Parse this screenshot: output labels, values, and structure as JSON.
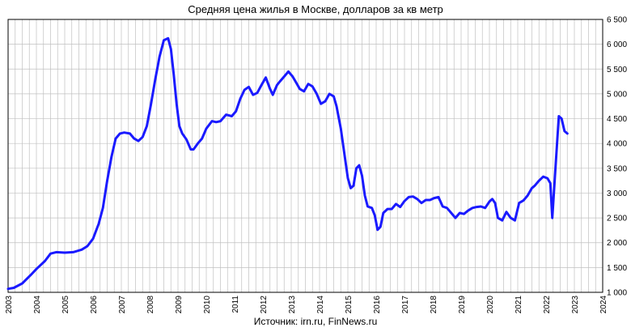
{
  "chart_data": {
    "type": "line",
    "title": "Средняя цена жилья в Москве, долларов за кв метр",
    "source": "Источник: irn.ru, FinNews.ru",
    "xlabel": "",
    "ylabel": "",
    "xlim": [
      2003,
      2024
    ],
    "ylim": [
      1000,
      6500
    ],
    "x_ticks": [
      "2003",
      "2004",
      "2005",
      "2006",
      "2007",
      "2008",
      "2009",
      "2010",
      "2011",
      "2012",
      "2013",
      "2014",
      "2015",
      "2016",
      "2017",
      "2018",
      "2019",
      "2020",
      "2021",
      "2022",
      "2023",
      "2024"
    ],
    "y_ticks": [
      "1 000",
      "1 500",
      "2 000",
      "2 500",
      "3 000",
      "3 500",
      "4 000",
      "4 500",
      "5 000",
      "5 500",
      "6 000",
      "6 500"
    ],
    "grid": true,
    "colors": {
      "line": "#1a1aff",
      "grid": "#c0c0c0",
      "axis": "#000000"
    },
    "series": [
      {
        "x": [
          2003.0,
          2003.2,
          2003.5,
          2003.8,
          2004.0,
          2004.3,
          2004.5,
          2004.7,
          2005.0,
          2005.3,
          2005.6,
          2005.8,
          2006.0,
          2006.2,
          2006.35,
          2006.5,
          2006.65,
          2006.8,
          2006.95,
          2007.1,
          2007.3,
          2007.45,
          2007.6,
          2007.75,
          2007.9,
          2008.05,
          2008.2,
          2008.35,
          2008.5,
          2008.65,
          2008.75,
          2008.85,
          2008.95,
          2009.05,
          2009.15,
          2009.3,
          2009.45,
          2009.55,
          2009.7,
          2009.85,
          2010.0,
          2010.2,
          2010.35,
          2010.5,
          2010.7,
          2010.9,
          2011.05,
          2011.2,
          2011.35,
          2011.5,
          2011.65,
          2011.8,
          2011.95,
          2012.1,
          2012.25,
          2012.35,
          2012.5,
          2012.6,
          2012.75,
          2012.9,
          2013.05,
          2013.15,
          2013.3,
          2013.45,
          2013.6,
          2013.75,
          2013.9,
          2014.05,
          2014.2,
          2014.35,
          2014.5,
          2014.6,
          2014.75,
          2014.9,
          2015.0,
          2015.1,
          2015.2,
          2015.3,
          2015.4,
          2015.5,
          2015.6,
          2015.7,
          2015.85,
          2015.95,
          2016.05,
          2016.15,
          2016.25,
          2016.4,
          2016.55,
          2016.7,
          2016.85,
          2017.0,
          2017.15,
          2017.3,
          2017.45,
          2017.6,
          2017.75,
          2017.9,
          2018.05,
          2018.2,
          2018.35,
          2018.5,
          2018.65,
          2018.8,
          2018.95,
          2019.1,
          2019.25,
          2019.4,
          2019.55,
          2019.7,
          2019.85,
          2020.0,
          2020.1,
          2020.2,
          2020.3,
          2020.45,
          2020.6,
          2020.75,
          2020.9,
          2021.05,
          2021.2,
          2021.35,
          2021.5,
          2021.6,
          2021.75,
          2021.9,
          2022.05,
          2022.15,
          2022.22,
          2022.35,
          2022.45,
          2022.55,
          2022.65,
          2022.75
        ],
        "y": [
          1070,
          1090,
          1180,
          1350,
          1470,
          1630,
          1780,
          1810,
          1800,
          1810,
          1860,
          1930,
          2080,
          2380,
          2700,
          3250,
          3730,
          4100,
          4200,
          4220,
          4200,
          4100,
          4050,
          4130,
          4350,
          4800,
          5300,
          5750,
          6080,
          6120,
          5900,
          5400,
          4800,
          4350,
          4200,
          4080,
          3880,
          3880,
          4000,
          4100,
          4300,
          4450,
          4430,
          4450,
          4580,
          4550,
          4650,
          4900,
          5080,
          5140,
          4980,
          5020,
          5180,
          5330,
          5100,
          4980,
          5180,
          5250,
          5350,
          5450,
          5350,
          5250,
          5100,
          5050,
          5200,
          5150,
          5000,
          4800,
          4850,
          5000,
          4950,
          4750,
          4300,
          3700,
          3300,
          3100,
          3150,
          3500,
          3560,
          3350,
          2950,
          2730,
          2700,
          2550,
          2260,
          2320,
          2600,
          2680,
          2680,
          2780,
          2720,
          2840,
          2920,
          2930,
          2880,
          2800,
          2860,
          2860,
          2900,
          2920,
          2730,
          2700,
          2600,
          2500,
          2600,
          2580,
          2650,
          2700,
          2720,
          2730,
          2700,
          2830,
          2880,
          2800,
          2500,
          2450,
          2620,
          2500,
          2450,
          2800,
          2850,
          2950,
          3100,
          3150,
          3250,
          3330,
          3300,
          3200,
          2500,
          3650,
          4550,
          4500,
          4250,
          4200
        ]
      }
    ]
  }
}
